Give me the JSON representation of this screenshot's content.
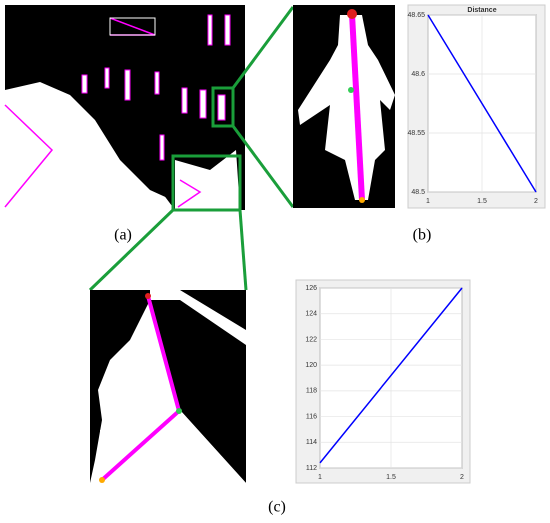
{
  "panel_labels": [
    "(a)",
    "(b)",
    "(c)"
  ],
  "chart_data": [
    {
      "type": "line",
      "title": "Distance",
      "x": [
        1,
        2
      ],
      "series": [
        {
          "color": "#0000ff",
          "values": [
            48.65,
            48.5
          ]
        }
      ],
      "xlim": [
        1,
        2
      ],
      "xticks": [
        1,
        1.5,
        2
      ],
      "ylim": [
        48.5,
        48.65
      ],
      "yticks": [
        48.5,
        48.55,
        48.6,
        48.65
      ],
      "grid": true
    },
    {
      "type": "line",
      "x": [
        1,
        2
      ],
      "series": [
        {
          "color": "#0000ff",
          "values": [
            112.4,
            126
          ]
        }
      ],
      "xlim": [
        1,
        2
      ],
      "xticks": [
        1,
        1.5,
        2
      ],
      "ylim": [
        112,
        126
      ],
      "yticks": [
        112,
        114,
        116,
        118,
        120,
        122,
        124,
        126
      ],
      "grid": true
    }
  ]
}
